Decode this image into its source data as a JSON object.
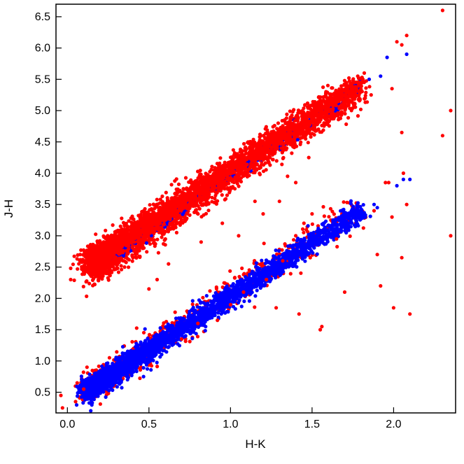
{
  "chart_data": {
    "type": "scatter",
    "title": "",
    "xlabel": "H-K",
    "ylabel": "J-H",
    "xlim": [
      -0.07,
      2.38
    ],
    "ylim": [
      0.17,
      6.7
    ],
    "xticks": [
      "0.0",
      "0.5",
      "1.0",
      "1.5",
      "2.0"
    ],
    "yticks": [
      "0.5",
      "1.0",
      "1.5",
      "2.0",
      "2.5",
      "3.0",
      "3.5",
      "4.0",
      "4.5",
      "5.0",
      "5.5",
      "6.0",
      "6.5"
    ],
    "grid": false,
    "legend": "none",
    "colors": {
      "series_a": "#ff0000",
      "series_b": "#0000ff"
    },
    "bands": [
      {
        "color": "#ff0000",
        "from": [
          0.15,
          2.48
        ],
        "to": [
          1.8,
          5.4
        ],
        "width": 0.12,
        "count": 2600
      },
      {
        "color": "#0000ff",
        "from": [
          0.28,
          2.7
        ],
        "to": [
          1.8,
          5.4
        ],
        "width": 0.05,
        "count": 260
      },
      {
        "color": "#ff0000",
        "from": [
          0.15,
          2.62
        ],
        "to": [
          1.8,
          5.4
        ],
        "width": 0.09,
        "count": 2200
      },
      {
        "color": "#ff0000",
        "from": [
          0.12,
          0.55
        ],
        "to": [
          1.8,
          3.45
        ],
        "width": 0.12,
        "count": 700
      },
      {
        "color": "#0000ff",
        "from": [
          0.12,
          0.52
        ],
        "to": [
          1.8,
          3.4
        ],
        "width": 0.08,
        "count": 2800
      }
    ],
    "outliers_red": [
      [
        -0.04,
        0.45
      ],
      [
        -0.03,
        0.25
      ],
      [
        0.02,
        2.48
      ],
      [
        0.02,
        2.3
      ],
      [
        0.05,
        0.35
      ],
      [
        0.06,
        0.65
      ],
      [
        0.08,
        2.6
      ],
      [
        0.1,
        0.55
      ],
      [
        0.12,
        2.75
      ],
      [
        0.12,
        0.9
      ],
      [
        0.5,
        2.15
      ],
      [
        0.55,
        2.3
      ],
      [
        0.62,
        2.55
      ],
      [
        0.7,
        1.35
      ],
      [
        0.8,
        1.6
      ],
      [
        0.82,
        2.9
      ],
      [
        0.92,
        1.65
      ],
      [
        0.95,
        3.2
      ],
      [
        1.0,
        1.9
      ],
      [
        1.05,
        3.0
      ],
      [
        1.08,
        2.1
      ],
      [
        1.15,
        3.55
      ],
      [
        1.2,
        3.35
      ],
      [
        1.22,
        2.3
      ],
      [
        1.28,
        1.85
      ],
      [
        1.3,
        3.55
      ],
      [
        1.32,
        2.6
      ],
      [
        1.35,
        3.95
      ],
      [
        1.4,
        3.0
      ],
      [
        1.4,
        3.85
      ],
      [
        1.42,
        1.75
      ],
      [
        1.45,
        3.2
      ],
      [
        1.48,
        4.25
      ],
      [
        1.5,
        3.35
      ],
      [
        1.55,
        1.5
      ],
      [
        1.56,
        1.55
      ],
      [
        1.65,
        2.95
      ],
      [
        1.7,
        2.1
      ],
      [
        1.78,
        5.55
      ],
      [
        1.82,
        5.6
      ],
      [
        1.88,
        3.4
      ],
      [
        1.9,
        2.7
      ],
      [
        1.92,
        2.2
      ],
      [
        1.95,
        3.85
      ],
      [
        1.97,
        3.85
      ],
      [
        1.99,
        3.3
      ],
      [
        1.99,
        5.35
      ],
      [
        2.0,
        1.85
      ],
      [
        2.02,
        6.1
      ],
      [
        2.05,
        6.05
      ],
      [
        2.05,
        4.65
      ],
      [
        2.05,
        2.65
      ],
      [
        2.06,
        4.0
      ],
      [
        2.08,
        6.2
      ],
      [
        2.08,
        3.5
      ],
      [
        2.1,
        1.75
      ],
      [
        2.3,
        6.6
      ],
      [
        2.3,
        4.6
      ],
      [
        2.35,
        5.0
      ],
      [
        2.35,
        3.0
      ]
    ],
    "outliers_blue": [
      [
        1.85,
        5.5
      ],
      [
        1.92,
        5.55
      ],
      [
        1.96,
        5.85
      ],
      [
        2.02,
        3.8
      ],
      [
        2.06,
        3.9
      ],
      [
        2.08,
        5.9
      ],
      [
        2.1,
        3.9
      ],
      [
        1.88,
        3.5
      ],
      [
        1.9,
        3.45
      ]
    ]
  }
}
